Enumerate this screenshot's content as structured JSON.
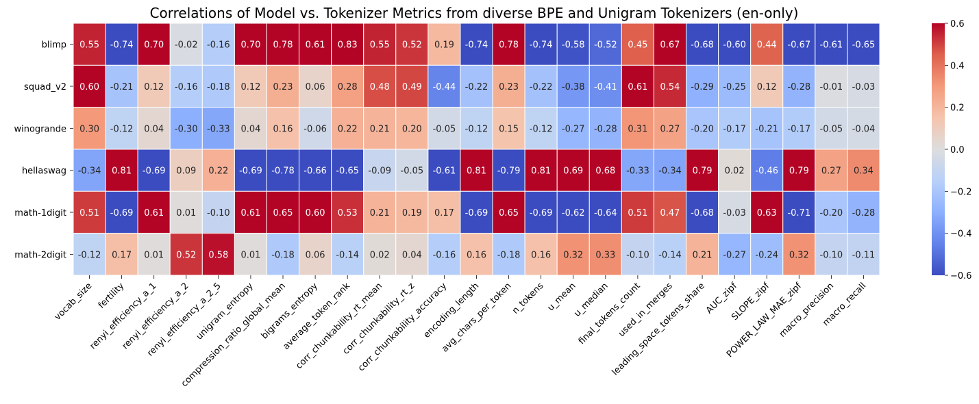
{
  "chart_data": {
    "type": "heatmap",
    "title": "Correlations of Model vs. Tokenizer Metrics from diverse BPE and Unigram Tokenizers (en-only)",
    "xlabel": "",
    "ylabel": "",
    "rows": [
      "blimp",
      "squad_v2",
      "winogrande",
      "hellaswag",
      "math-1digit",
      "math-2digit"
    ],
    "columns": [
      "vocab_size",
      "fertility",
      "renyi_efficiency_a_1",
      "renyi_efficiency_a_2",
      "renyi_efficiency_a_2_5",
      "unigram_entropy",
      "compression_ratio_global_mean",
      "bigrams_entropy",
      "average_token_rank",
      "corr_chunkability_rt_mean",
      "corr_chunkability_rt_z",
      "corr_chunkability_accuracy",
      "encoding_length",
      "avg_chars_per_token",
      "n_tokens",
      "u_mean",
      "u_median",
      "final_tokens_count",
      "used_in_merges",
      "leading_space_tokens_share",
      "AUC_zipf",
      "SLOPE_zipf",
      "POWER_LAW_MAE_zipf",
      "macro_precision",
      "macro_recall"
    ],
    "values": [
      [
        0.55,
        -0.74,
        0.7,
        -0.02,
        -0.16,
        0.7,
        0.78,
        0.61,
        0.83,
        0.55,
        0.52,
        0.19,
        -0.74,
        0.78,
        -0.74,
        -0.58,
        -0.52,
        0.45,
        0.67,
        -0.68,
        -0.6,
        0.44,
        -0.67,
        -0.61,
        -0.65
      ],
      [
        0.6,
        -0.21,
        0.12,
        -0.16,
        -0.18,
        0.12,
        0.23,
        0.06,
        0.28,
        0.48,
        0.49,
        -0.44,
        -0.22,
        0.23,
        -0.22,
        -0.38,
        -0.41,
        0.61,
        0.54,
        -0.29,
        -0.25,
        0.12,
        -0.28,
        -0.01,
        -0.03
      ],
      [
        0.3,
        -0.12,
        0.04,
        -0.3,
        -0.33,
        0.04,
        0.16,
        -0.06,
        0.22,
        0.21,
        0.2,
        -0.05,
        -0.12,
        0.15,
        -0.12,
        -0.27,
        -0.28,
        0.31,
        0.27,
        -0.2,
        -0.17,
        -0.21,
        -0.17,
        -0.05,
        -0.04
      ],
      [
        -0.34,
        0.81,
        -0.69,
        0.09,
        0.22,
        -0.69,
        -0.78,
        -0.66,
        -0.65,
        -0.09,
        -0.05,
        -0.61,
        0.81,
        -0.79,
        0.81,
        0.69,
        0.68,
        -0.33,
        -0.34,
        0.79,
        0.02,
        -0.46,
        0.79,
        0.27,
        0.34
      ],
      [
        0.51,
        -0.69,
        0.61,
        0.01,
        -0.1,
        0.61,
        0.65,
        0.6,
        0.53,
        0.21,
        0.19,
        0.17,
        -0.69,
        0.65,
        -0.69,
        -0.62,
        -0.64,
        0.51,
        0.47,
        -0.68,
        -0.03,
        0.63,
        -0.71,
        -0.2,
        -0.28
      ],
      [
        -0.12,
        0.17,
        0.01,
        0.52,
        0.58,
        0.01,
        -0.18,
        0.06,
        -0.14,
        0.02,
        0.04,
        -0.16,
        0.16,
        -0.18,
        0.16,
        0.32,
        0.33,
        -0.1,
        -0.14,
        0.21,
        -0.27,
        -0.24,
        0.32,
        -0.1,
        -0.11
      ]
    ],
    "colormap": "coolwarm",
    "vmin": -0.6,
    "vmax": 0.6,
    "colorbar_ticks": [
      -0.6,
      -0.4,
      -0.2,
      0.0,
      0.2,
      0.4,
      0.6
    ],
    "colorbar_tick_labels": [
      "−0.6",
      "−0.4",
      "−0.2",
      "0.0",
      "0.2",
      "0.4",
      "0.6"
    ],
    "annotation_format": "2 decimals"
  }
}
